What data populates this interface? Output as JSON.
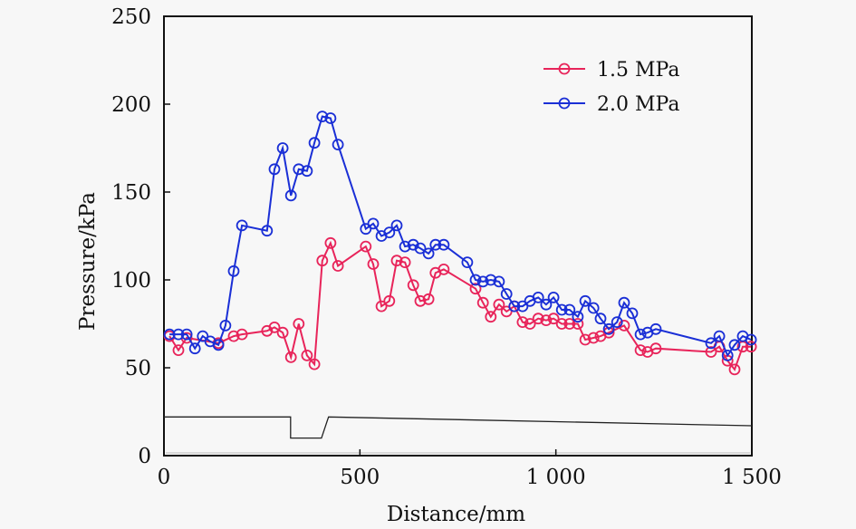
{
  "chart_data": {
    "type": "line",
    "title": "",
    "xlabel": "Distance/mm",
    "ylabel": "Pressure/kPa",
    "xlim": [
      0,
      1500
    ],
    "ylim": [
      0,
      250
    ],
    "xticks": [
      0,
      500,
      1000,
      1500
    ],
    "xtick_labels": [
      "0",
      "500",
      "1 000",
      "1 500"
    ],
    "yticks": [
      0,
      50,
      100,
      150,
      200,
      250
    ],
    "ytick_labels": [
      "0",
      "50",
      "100",
      "150",
      "200",
      "250"
    ],
    "grid": false,
    "legend_position": "top-right",
    "series": [
      {
        "name": "1.5 MPa",
        "label": "1.5 MPa",
        "color": "#e8245a",
        "marker": "open-circle",
        "x": [
          14,
          37,
          58,
          139,
          178,
          199,
          263,
          282,
          303,
          324,
          344,
          365,
          384,
          404,
          425,
          444,
          515,
          534,
          555,
          575,
          594,
          615,
          636,
          654,
          675,
          693,
          714,
          795,
          814,
          834,
          855,
          874,
          894,
          915,
          934,
          955,
          975,
          994,
          1015,
          1035,
          1056,
          1075,
          1096,
          1114,
          1135,
          1174,
          1216,
          1234,
          1255,
          1396,
          1417,
          1438,
          1456,
          1477,
          1498
        ],
        "y": [
          68,
          60,
          67,
          64,
          68,
          69,
          71,
          73,
          70,
          56,
          75,
          57,
          52,
          111,
          121,
          108,
          119,
          109,
          85,
          88,
          111,
          110,
          97,
          88,
          89,
          104,
          106,
          95,
          87,
          79,
          86,
          82,
          85,
          76,
          75,
          78,
          77,
          78,
          75,
          75,
          75,
          66,
          67,
          68,
          70,
          74,
          60,
          59,
          61,
          59,
          62,
          54,
          49,
          62,
          62
        ]
      },
      {
        "name": "2.0 MPa",
        "label": "2.0 MPa",
        "color": "#1a2fd6",
        "marker": "open-circle",
        "x": [
          14,
          37,
          58,
          79,
          99,
          118,
          139,
          157,
          178,
          199,
          263,
          282,
          303,
          324,
          344,
          365,
          384,
          404,
          425,
          444,
          515,
          534,
          555,
          575,
          594,
          615,
          636,
          654,
          675,
          693,
          714,
          774,
          795,
          814,
          834,
          855,
          874,
          894,
          915,
          934,
          955,
          975,
          994,
          1015,
          1035,
          1056,
          1075,
          1096,
          1114,
          1135,
          1156,
          1174,
          1195,
          1216,
          1234,
          1255,
          1396,
          1417,
          1438,
          1456,
          1477,
          1498
        ],
        "y": [
          69,
          69,
          69,
          61,
          68,
          65,
          63,
          74,
          105,
          131,
          128,
          163,
          175,
          148,
          163,
          162,
          178,
          193,
          192,
          177,
          129,
          132,
          125,
          127,
          131,
          119,
          120,
          118,
          115,
          120,
          120,
          110,
          100,
          99,
          100,
          99,
          92,
          85,
          85,
          88,
          90,
          86,
          90,
          83,
          83,
          79,
          88,
          84,
          78,
          72,
          76,
          87,
          81,
          69,
          70,
          72,
          64,
          68,
          57,
          63,
          68,
          66
        ]
      }
    ],
    "profile_line": {
      "name": "cross-section profile",
      "color": "#222222",
      "x": [
        0,
        323,
        323,
        402,
        420,
        1500
      ],
      "y": [
        22,
        22,
        10,
        10,
        22,
        17
      ]
    }
  }
}
